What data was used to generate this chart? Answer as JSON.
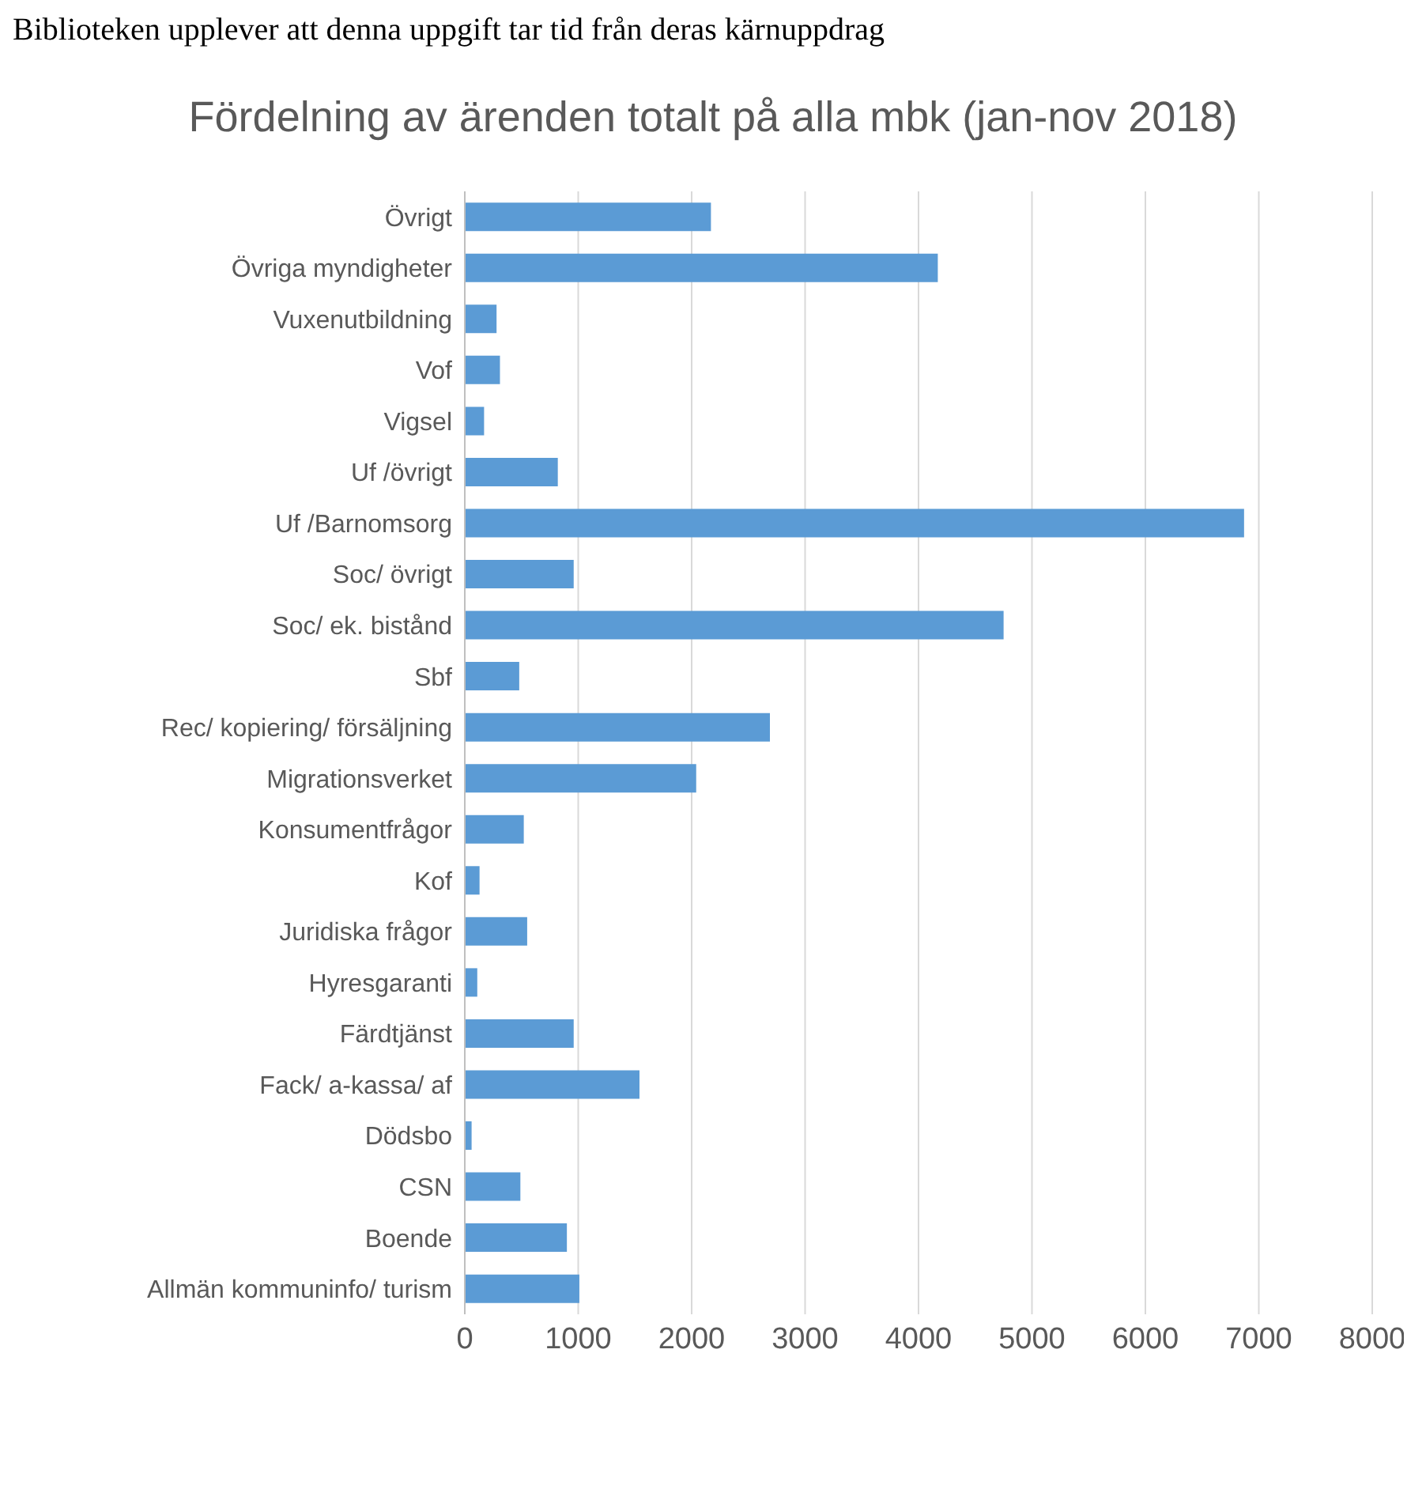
{
  "chart_data": {
    "type": "bar",
    "orientation": "horizontal",
    "title": "Fördelning av ärenden totalt på alla mbk (jan-nov 2018)",
    "annotations": [
      "Biblioteken upplever att denna uppgift tar tid från deras kärnuppdrag"
    ],
    "categories": [
      "Övrigt",
      "Övriga myndigheter",
      "Vuxenutbildning",
      "Vof",
      "Vigsel",
      "Uf /övrigt",
      "Uf /Barnomsorg",
      "Soc/ övrigt",
      "Soc/ ek. bistånd",
      "Sbf",
      "Rec/ kopiering/ försäljning",
      "Migrationsverket",
      "Konsumentfrågor",
      "Kof",
      "Juridiska frågor",
      "Hyresgaranti",
      "Färdtjänst",
      "Fack/ a-kassa/ af",
      "Dödsbo",
      "CSN",
      "Boende",
      "Allmän kommuninfo/ turism"
    ],
    "values": [
      2170,
      4170,
      280,
      310,
      170,
      820,
      6870,
      960,
      4750,
      480,
      2690,
      2040,
      520,
      130,
      550,
      110,
      960,
      1540,
      60,
      490,
      900,
      1010
    ],
    "color": "#5b9bd5",
    "xlim": [
      0,
      8000
    ],
    "xticks": [
      0,
      1000,
      2000,
      3000,
      4000,
      5000,
      6000,
      7000,
      8000
    ],
    "grid": "x",
    "legend": false
  }
}
